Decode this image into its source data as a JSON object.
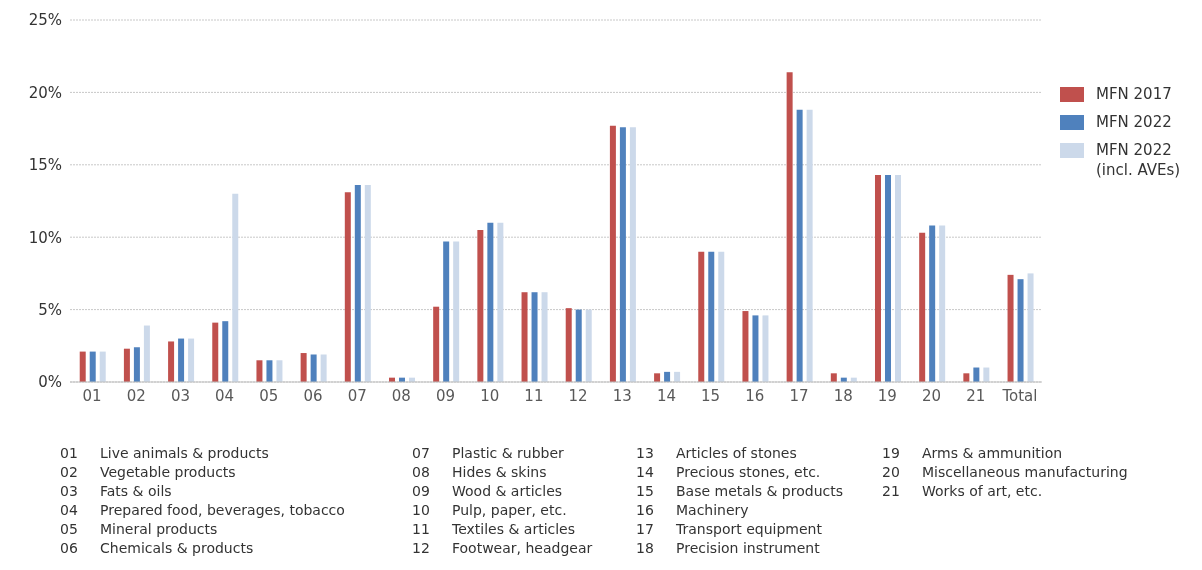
{
  "chart_data": {
    "type": "bar",
    "categories": [
      "01",
      "02",
      "03",
      "04",
      "05",
      "06",
      "07",
      "08",
      "09",
      "10",
      "11",
      "12",
      "13",
      "14",
      "15",
      "16",
      "17",
      "18",
      "19",
      "20",
      "21",
      "Total"
    ],
    "series": [
      {
        "name": "MFN 2017",
        "color": "#c0504d",
        "values": [
          2.1,
          2.3,
          2.8,
          4.1,
          1.5,
          2.0,
          13.1,
          0.3,
          5.2,
          10.5,
          6.2,
          5.1,
          17.7,
          0.6,
          9.0,
          4.9,
          21.4,
          0.6,
          14.3,
          10.3,
          0.6,
          7.4
        ]
      },
      {
        "name": "MFN 2022",
        "color": "#4f81bd",
        "values": [
          2.1,
          2.4,
          3.0,
          4.2,
          1.5,
          1.9,
          13.6,
          0.3,
          9.7,
          11.0,
          6.2,
          5.0,
          17.6,
          0.7,
          9.0,
          4.6,
          18.8,
          0.3,
          14.3,
          10.8,
          1.0,
          7.1
        ]
      },
      {
        "name": "MFN 2022 (incl. AVEs)",
        "color": "#ccd9ea",
        "values": [
          2.1,
          3.9,
          3.0,
          13.0,
          1.5,
          1.9,
          13.6,
          0.3,
          9.7,
          11.0,
          6.2,
          5.0,
          17.6,
          0.7,
          9.0,
          4.6,
          18.8,
          0.3,
          14.3,
          10.8,
          1.0,
          7.5
        ]
      }
    ],
    "ylim": [
      0,
      25
    ],
    "yticks": [
      {
        "value": 0,
        "label": "0%"
      },
      {
        "value": 5,
        "label": "5%"
      },
      {
        "value": 10,
        "label": "10%"
      },
      {
        "value": 15,
        "label": "15%"
      },
      {
        "value": 20,
        "label": "20%"
      },
      {
        "value": 25,
        "label": "25%"
      }
    ],
    "grid": "y",
    "legend": "right",
    "annotations": [
      "01 Live animals & products",
      "02 Vegetable products",
      "03 Fats & oils",
      "04 Prepared food, beverages, tobacco",
      "05 Mineral products",
      "06 Chemicals & products",
      "07 Plastic & rubber",
      "08 Hides & skins",
      "09 Wood & articles",
      "10 Pulp, paper, etc.",
      "11 Textiles & articles",
      "12 Footwear, headgear",
      "13 Articles of stones",
      "14 Precious stones, etc.",
      "15 Base metals & products",
      "16 Machinery",
      "17 Transport equipment",
      "18 Precision instrument",
      "19 Arms & ammunition",
      "20 Miscellaneous manufacturing",
      "21 Works of art, etc."
    ]
  }
}
